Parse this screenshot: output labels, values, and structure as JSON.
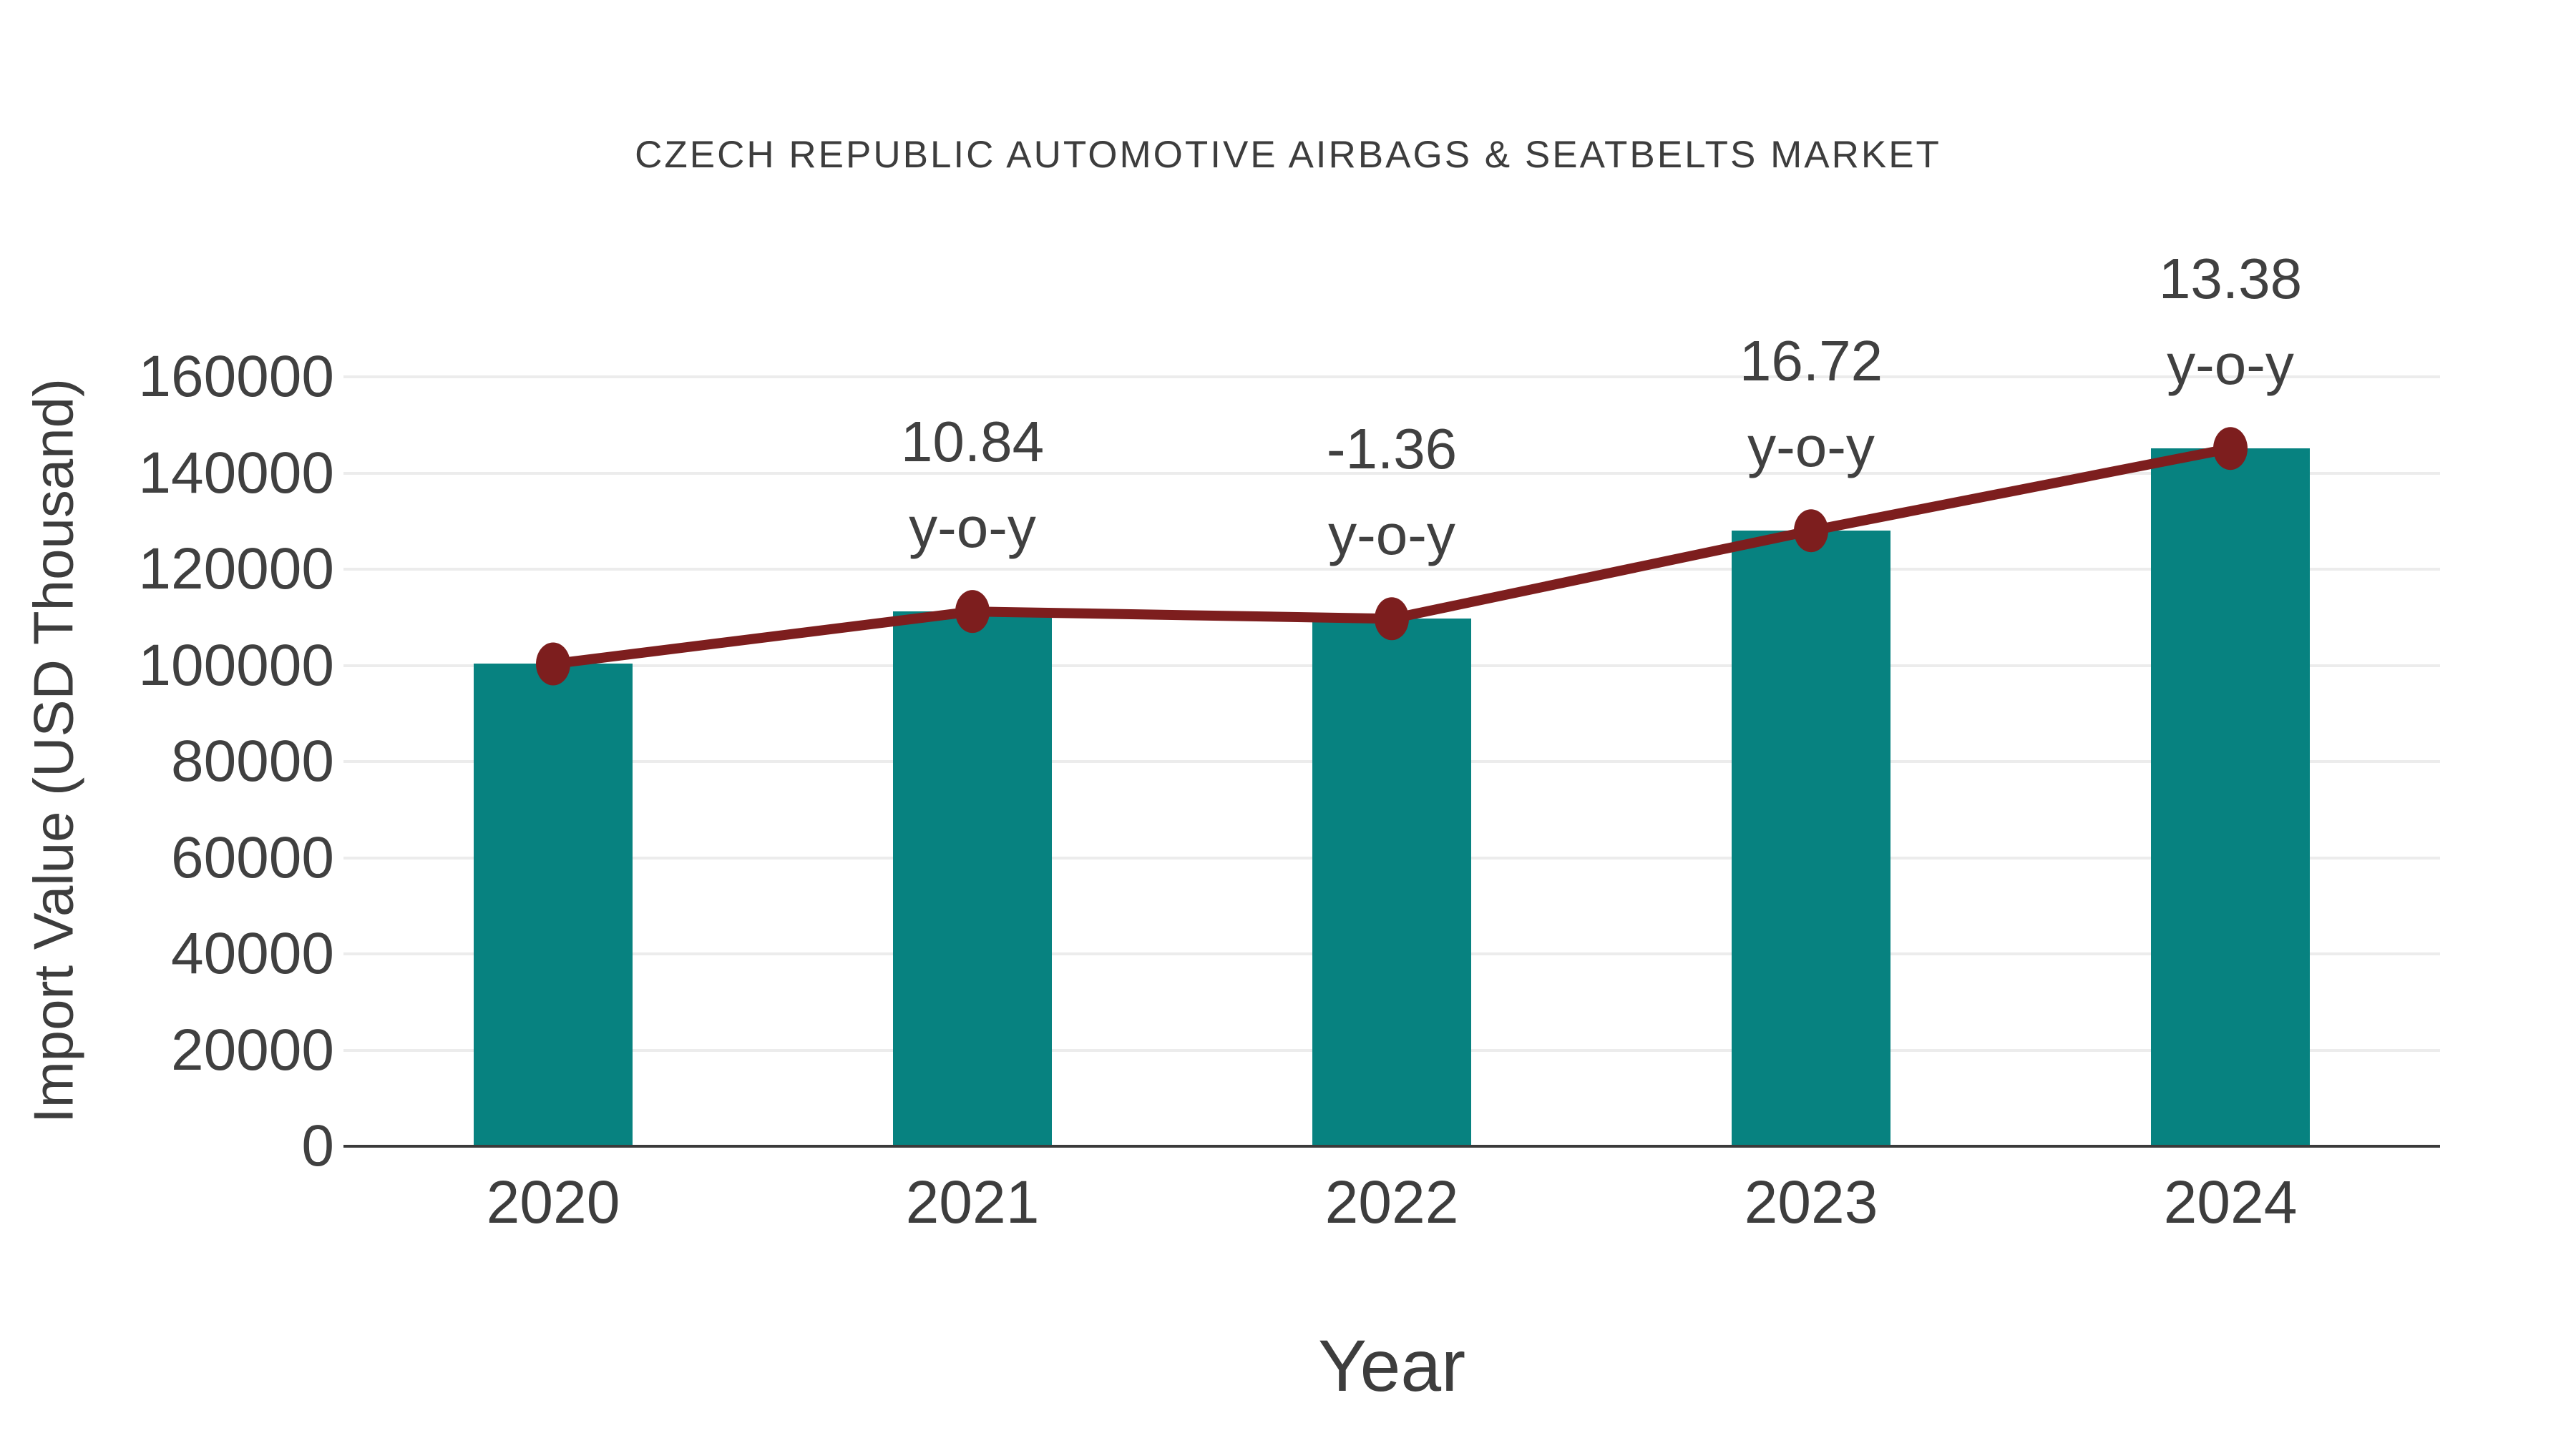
{
  "title": "CZECH REPUBLIC AUTOMOTIVE AIRBAGS & SEATBELTS MARKET",
  "chart_data": {
    "type": "bar",
    "title": "CZECH REPUBLIC AUTOMOTIVE AIRBAGS & SEATBELTS MARKET",
    "xlabel": "Year",
    "ylabel": "Import Value (USD Thousand)",
    "categories": [
      "2020",
      "2021",
      "2022",
      "2023",
      "2024"
    ],
    "series": [
      {
        "name": "Import Value (USD Thousand)",
        "type": "bar",
        "values": [
          100300,
          111200,
          109700,
          128000,
          145100
        ]
      },
      {
        "name": "y-o-y trend line",
        "type": "line",
        "values": [
          100300,
          111200,
          109700,
          128000,
          145100
        ]
      }
    ],
    "yoy_labels": [
      null,
      "10.84",
      "-1.36",
      "16.72",
      "13.38"
    ],
    "yoy_suffix": "y-o-y",
    "yticks": [
      0,
      20000,
      40000,
      60000,
      80000,
      100000,
      120000,
      140000,
      160000
    ],
    "ylim": [
      0,
      171000
    ],
    "grid": true,
    "legend_position": "none"
  },
  "colors": {
    "bar_fill": "#078280",
    "line_stroke": "#7d1e1e",
    "marker_fill": "#7d1e1e",
    "gridline": "#ececec",
    "axis_spine": "#3a3a3a",
    "text": "#3d3d3d",
    "background": "#ffffff"
  }
}
